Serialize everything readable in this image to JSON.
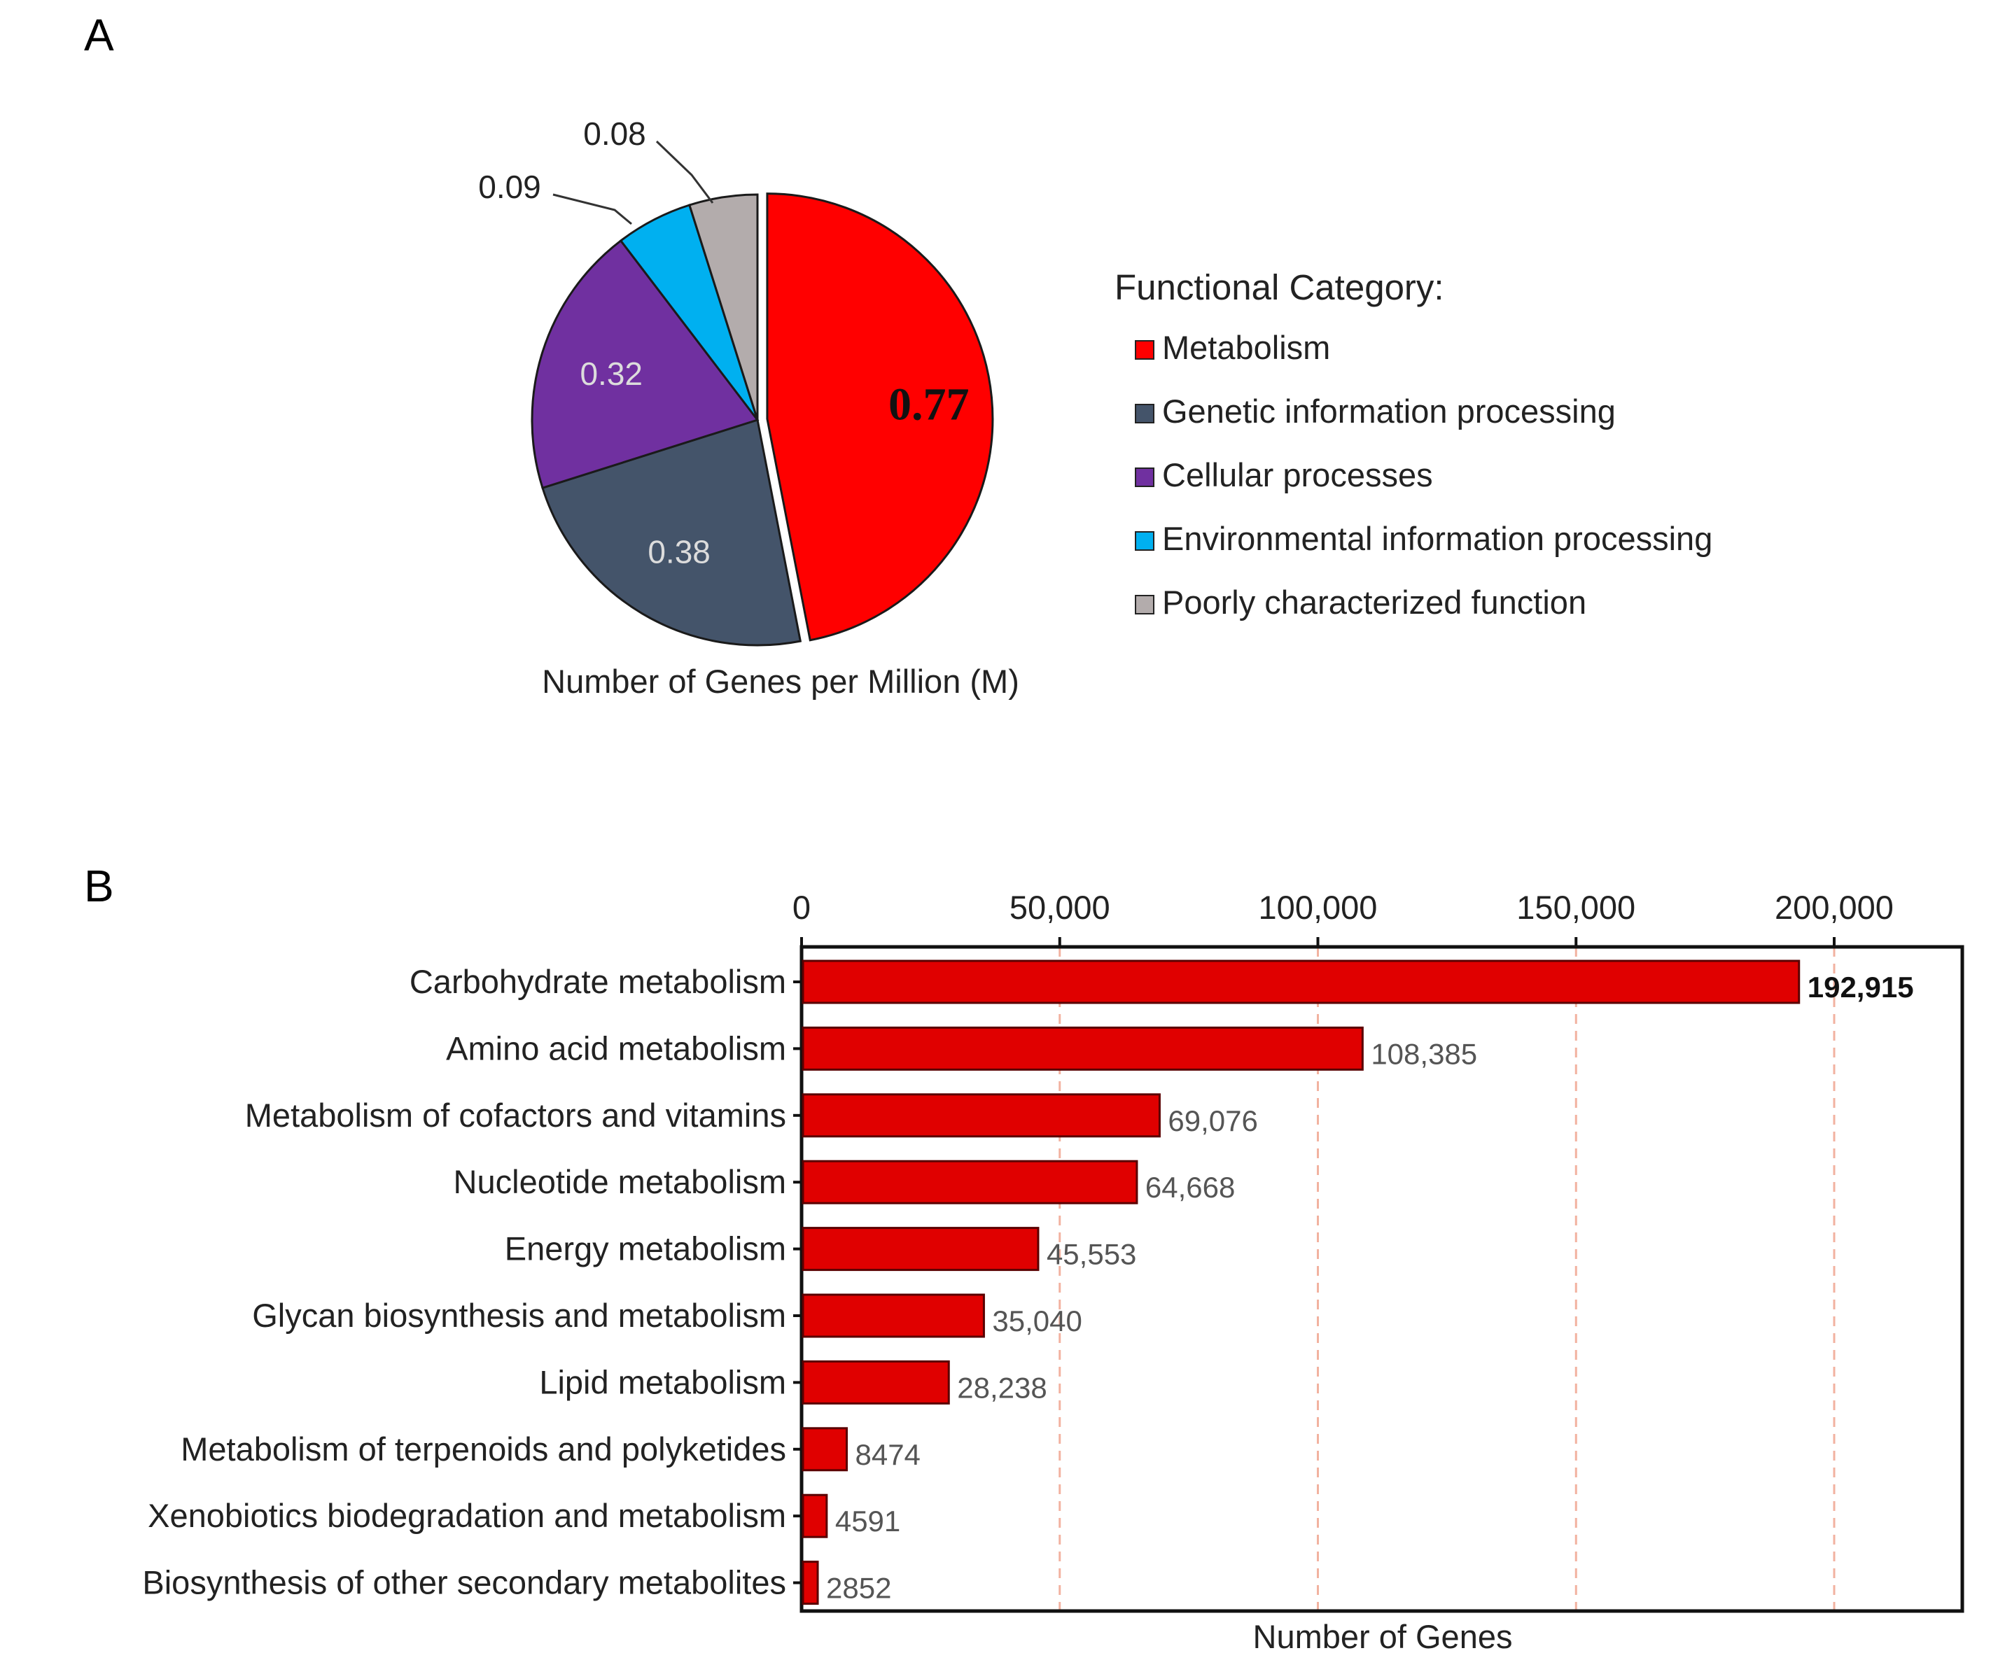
{
  "panel_labels": {
    "a": "A",
    "b": "B"
  },
  "chart_data": [
    {
      "type": "pie",
      "panel": "A",
      "title": "Number of Genes per Million (M)",
      "legend_title": "Functional Category:",
      "legend_position": "right",
      "exploded_slice": "Metabolism",
      "slices": [
        {
          "label": "Metabolism",
          "value": 0.77,
          "value_label": "0.77",
          "color": "#ff0000"
        },
        {
          "label": "Genetic information processing",
          "value": 0.38,
          "value_label": "0.38",
          "color": "#44546a"
        },
        {
          "label": "Cellular processes",
          "value": 0.32,
          "value_label": "0.32",
          "color": "#7030a0"
        },
        {
          "label": "Environmental information processing",
          "value": 0.09,
          "value_label": "0.09",
          "color": "#00b0f0"
        },
        {
          "label": "Poorly characterized function",
          "value": 0.08,
          "value_label": "0.08",
          "color": "#b3acac"
        }
      ]
    },
    {
      "type": "bar",
      "orientation": "horizontal",
      "panel": "B",
      "xlabel": "Number of Genes",
      "ylabel": "",
      "xlim": [
        0,
        225000
      ],
      "ticks": [
        0,
        50000,
        100000,
        150000,
        200000
      ],
      "tick_labels": [
        "0",
        "50,000",
        "100,000",
        "150,000",
        "200,000"
      ],
      "grid": "vertical dashed",
      "bar_color": "#e00000",
      "categories": [
        "Carbohydrate metabolism",
        "Amino acid metabolism",
        "Metabolism of cofactors and vitamins",
        "Nucleotide metabolism",
        "Energy metabolism",
        "Glycan biosynthesis and metabolism",
        "Lipid metabolism",
        "Metabolism of terpenoids and polyketides",
        "Xenobiotics biodegradation and metabolism",
        "Biosynthesis of other secondary metabolites"
      ],
      "values": [
        192915,
        108385,
        69076,
        64668,
        45553,
        35040,
        28238,
        8474,
        4591,
        2852
      ],
      "value_labels": [
        "192,915",
        "108,385",
        "69,076",
        "64,668",
        "45,553",
        "35,040",
        "28,238",
        "8474",
        "4591",
        "2852"
      ]
    }
  ]
}
